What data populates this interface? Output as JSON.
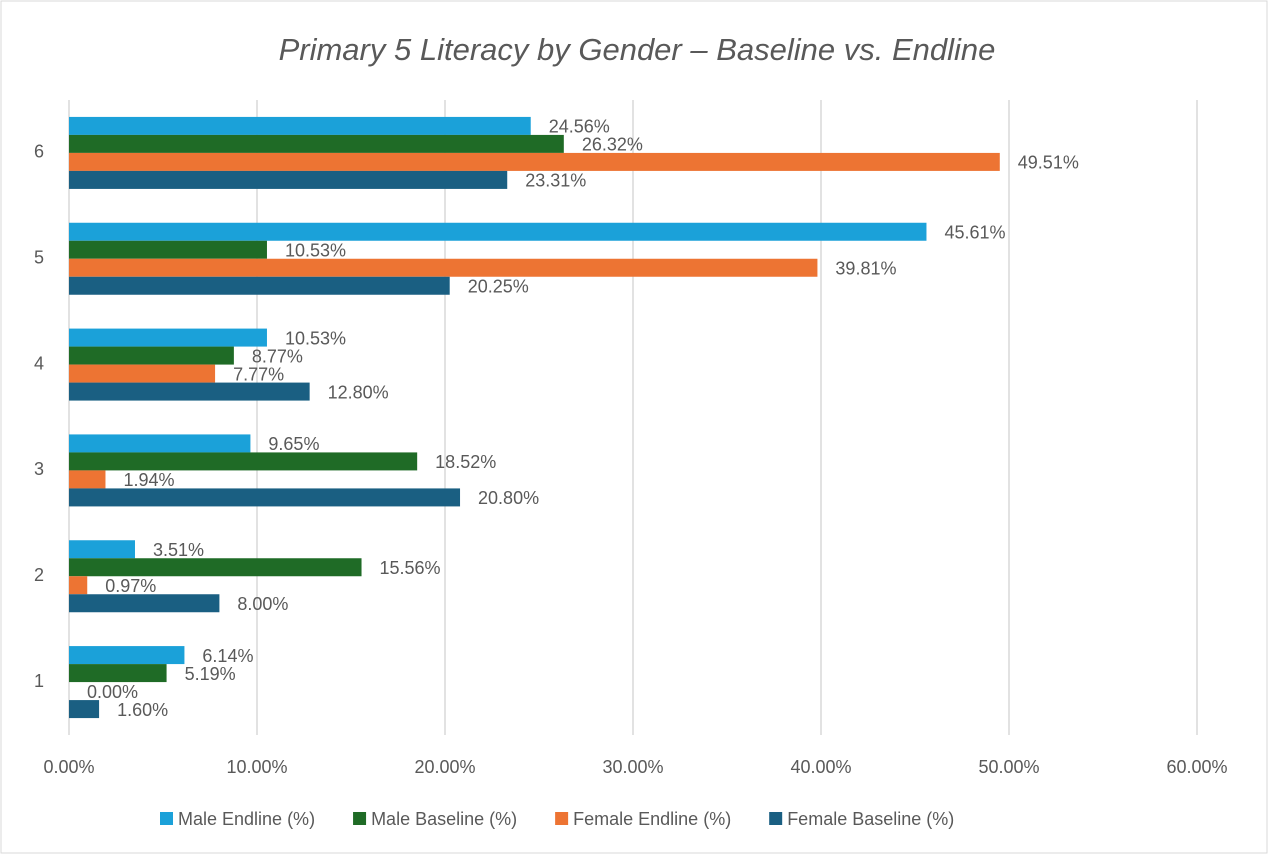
{
  "chart_data": {
    "type": "hbar",
    "title": "Primary 5 Literacy by Gender – Baseline vs. Endline",
    "categories": [
      "1",
      "2",
      "3",
      "4",
      "5",
      "6"
    ],
    "series": [
      {
        "name": "Male Endline (%)",
        "color": "#1ba1d9",
        "values": [
          6.14,
          3.51,
          9.65,
          10.53,
          45.61,
          24.56
        ],
        "value_labels": [
          "6.14%",
          "3.51%",
          "9.65%",
          "10.53%",
          "45.61%",
          "24.56%"
        ]
      },
      {
        "name": "Male Baseline (%)",
        "color": "#1f6b26",
        "values": [
          5.19,
          15.56,
          18.52,
          8.77,
          10.53,
          26.32
        ],
        "value_labels": [
          "5.19%",
          "15.56%",
          "18.52%",
          "8.77%",
          "10.53%",
          "26.32%"
        ]
      },
      {
        "name": "Female Endline (%)",
        "color": "#ed7433",
        "values": [
          0.0,
          0.97,
          1.94,
          7.77,
          39.81,
          49.51
        ],
        "value_labels": [
          "0.00%",
          "0.97%",
          "1.94%",
          "7.77%",
          "39.81%",
          "49.51%"
        ]
      },
      {
        "name": "Female Baseline (%)",
        "color": "#1a5f82",
        "values": [
          1.6,
          8.0,
          20.8,
          12.8,
          20.25,
          23.31
        ],
        "value_labels": [
          "1.60%",
          "8.00%",
          "20.80%",
          "12.80%",
          "20.25%",
          "23.31%"
        ]
      }
    ],
    "xlim": [
      0,
      60
    ],
    "xticks": [
      {
        "value": 0,
        "label": "0.00%"
      },
      {
        "value": 10,
        "label": "10.00%"
      },
      {
        "value": 20,
        "label": "20.00%"
      },
      {
        "value": 30,
        "label": "30.00%"
      },
      {
        "value": 40,
        "label": "40.00%"
      },
      {
        "value": 50,
        "label": "50.00%"
      },
      {
        "value": 60,
        "label": "60.00%"
      }
    ],
    "grid": true,
    "legend": "bottom"
  }
}
